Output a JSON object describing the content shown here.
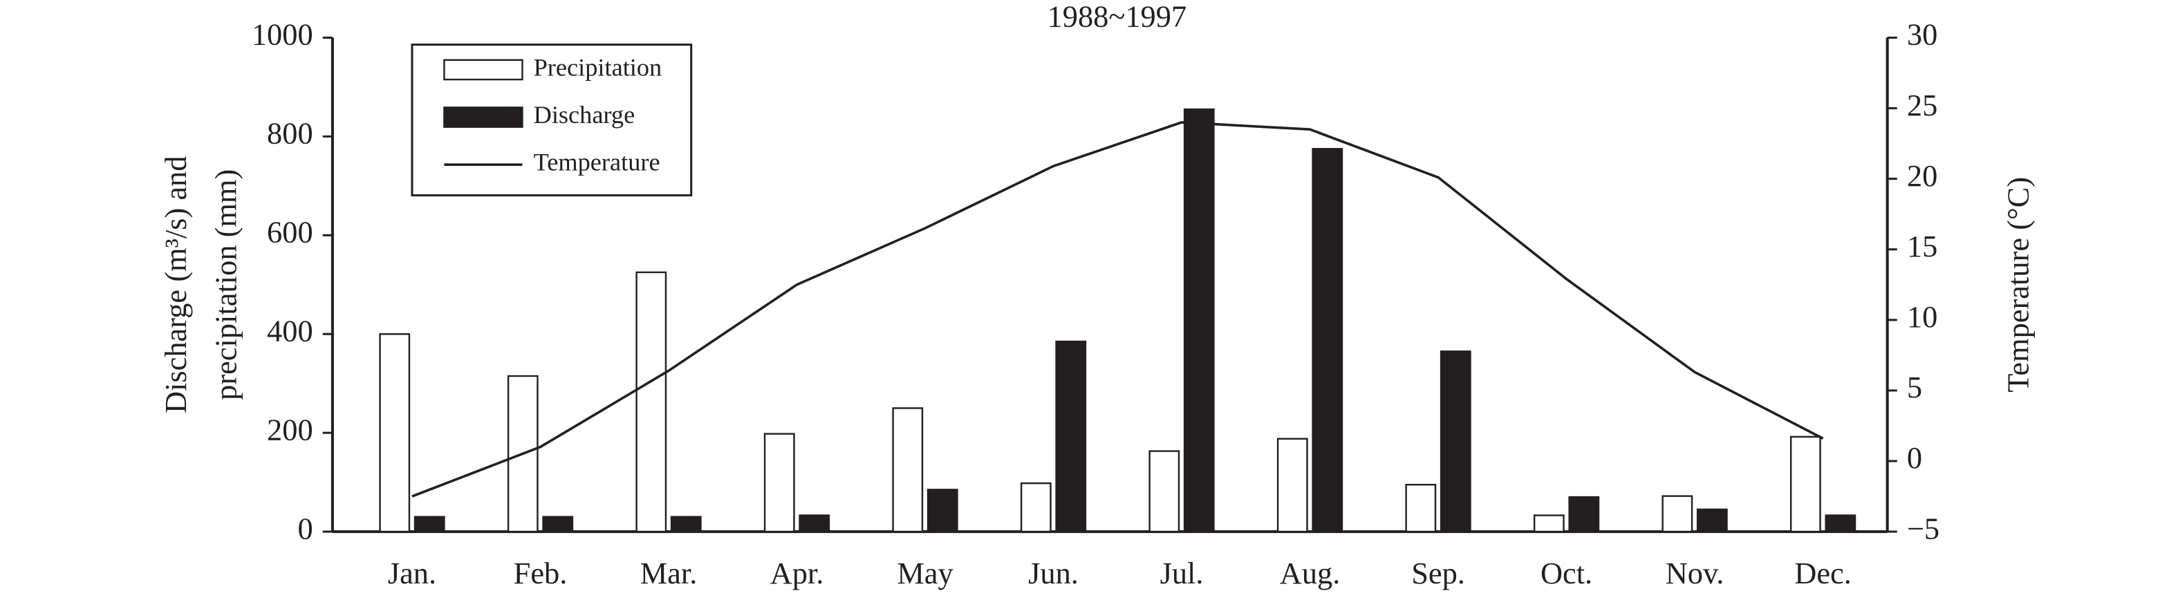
{
  "chart_data": {
    "type": "bar-line",
    "title": "1988~1997",
    "y_label": [
      "Discharge (m³/s) and",
      "precipitation (mm)"
    ],
    "y2_label": "Temperature (°C)",
    "categories": [
      "Jan.",
      "Feb.",
      "Mar.",
      "Apr.",
      "May",
      "Jun.",
      "Jul.",
      "Aug.",
      "Sep.",
      "Oct.",
      "Nov.",
      "Dec."
    ],
    "series": [
      {
        "name": "Precipitation",
        "type": "bar",
        "color": "#ffffff",
        "values": [
          400,
          315,
          525,
          198,
          250,
          98,
          163,
          188,
          95,
          33,
          72,
          192
        ]
      },
      {
        "name": "Discharge",
        "type": "bar",
        "color": "#231f20",
        "values": [
          30,
          30,
          30,
          33,
          85,
          385,
          855,
          775,
          365,
          70,
          45,
          33
        ]
      },
      {
        "name": "Temperature",
        "type": "line",
        "axis": "y2",
        "color": "#231f20",
        "values": [
          -2.5,
          1.0,
          6.4,
          12.5,
          16.5,
          20.9,
          24.0,
          23.5,
          20.1,
          12.9,
          6.3,
          1.6
        ]
      }
    ],
    "ylim": [
      0,
      1000
    ],
    "yticks": [
      0,
      200,
      400,
      600,
      800,
      1000
    ],
    "y2lim": [
      -5,
      30
    ],
    "y2ticks": [
      {
        "value": -5,
        "label": "−5"
      },
      0,
      5,
      10,
      15,
      20,
      25,
      30
    ],
    "legend": "top-left"
  }
}
